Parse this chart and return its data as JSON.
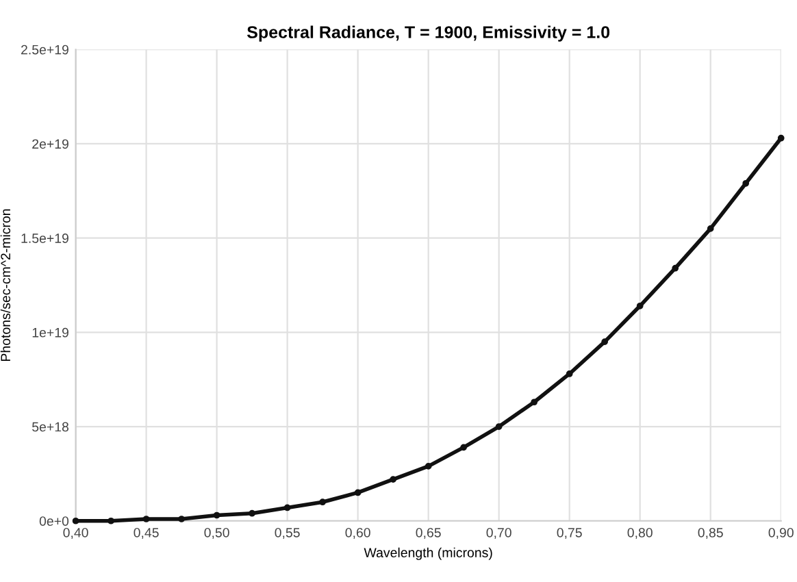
{
  "chart_data": {
    "type": "line",
    "title": "Spectral Radiance, T = 1900, Emissivity = 1.0",
    "xlabel": "Wavelength (microns)",
    "ylabel": "Photons/sec-cm^2-micron",
    "x": [
      0.4,
      0.425,
      0.45,
      0.475,
      0.5,
      0.525,
      0.55,
      0.575,
      0.6,
      0.625,
      0.65,
      0.675,
      0.7,
      0.725,
      0.75,
      0.775,
      0.8,
      0.825,
      0.85,
      0.875,
      0.9
    ],
    "series": [
      {
        "color": "#111111",
        "values": [
          0,
          0,
          1e+17,
          1e+17,
          3e+17,
          4e+17,
          7e+17,
          1e+18,
          1.5e+18,
          2.2e+18,
          2.9e+18,
          3.9e+18,
          5e+18,
          6.3e+18,
          7.8e+18,
          9.5e+18,
          1.14e+19,
          1.34e+19,
          1.55e+19,
          1.79e+19,
          2.03e+19
        ]
      }
    ],
    "xlim": [
      0.4,
      0.9
    ],
    "ylim": [
      0,
      2.5e+19
    ],
    "xticks": [
      {
        "value": 0.4,
        "label": "0,40"
      },
      {
        "value": 0.45,
        "label": "0,45"
      },
      {
        "value": 0.5,
        "label": "0,50"
      },
      {
        "value": 0.55,
        "label": "0,55"
      },
      {
        "value": 0.6,
        "label": "0,60"
      },
      {
        "value": 0.65,
        "label": "0,65"
      },
      {
        "value": 0.7,
        "label": "0,70"
      },
      {
        "value": 0.75,
        "label": "0,75"
      },
      {
        "value": 0.8,
        "label": "0,80"
      },
      {
        "value": 0.85,
        "label": "0,85"
      },
      {
        "value": 0.9,
        "label": "0,90"
      }
    ],
    "yticks": [
      {
        "value": 0,
        "label": "0e+0"
      },
      {
        "value": 5e+18,
        "label": "5e+18"
      },
      {
        "value": 1e+19,
        "label": "1e+19"
      },
      {
        "value": 1.5e+19,
        "label": "1.5e+19"
      },
      {
        "value": 2e+19,
        "label": "2e+19"
      },
      {
        "value": 2.5e+19,
        "label": "2.5e+19"
      }
    ],
    "grid": true,
    "marker": "circle",
    "line_style": "solid"
  }
}
